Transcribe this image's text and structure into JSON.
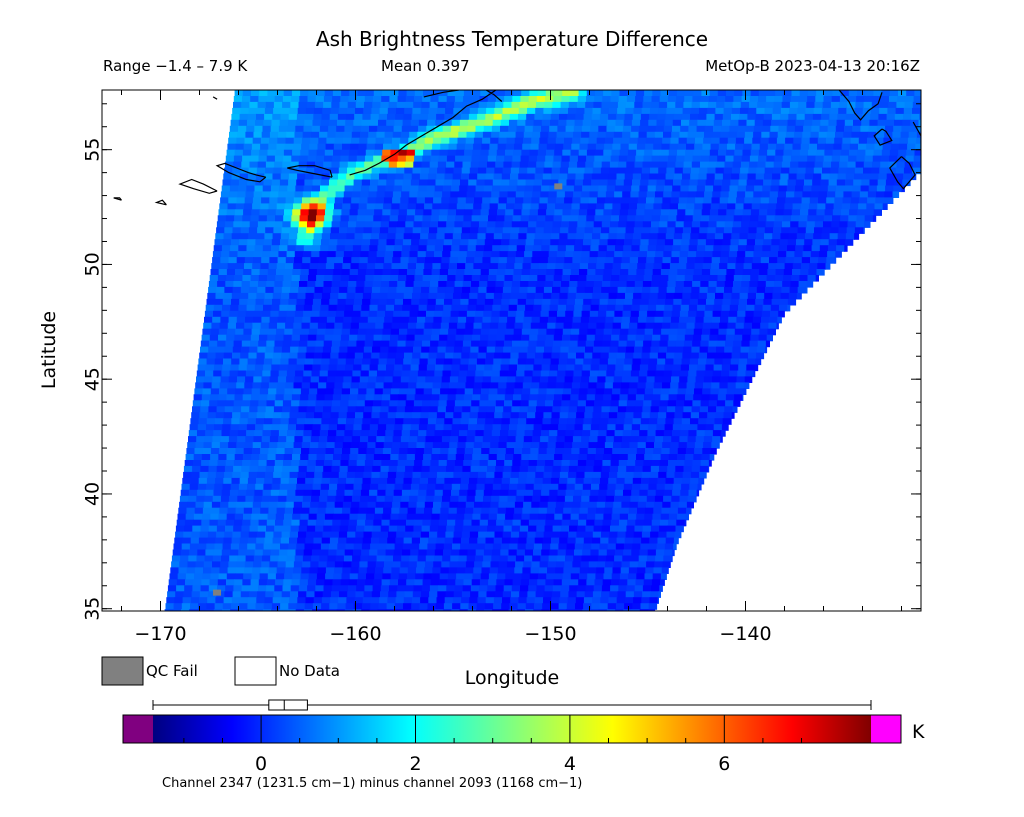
{
  "chart_data": {
    "type": "heatmap",
    "title": "Ash Brightness Temperature Difference",
    "info": {
      "range": "Range −1.4 – 7.9 K",
      "mean": "Mean 0.397",
      "satellite_time": "MetOp-B 2023-04-13 20:16Z"
    },
    "xlabel": "Longitude",
    "ylabel": "Latitude",
    "xlim": [
      -173,
      -131
    ],
    "ylim": [
      34.9,
      57.6
    ],
    "x_ticks": [
      {
        "value": -170,
        "label": "−170"
      },
      {
        "value": -160,
        "label": "−160"
      },
      {
        "value": -150,
        "label": "−150"
      },
      {
        "value": -140,
        "label": "−140"
      }
    ],
    "y_ticks": [
      {
        "value": 35,
        "label": "35"
      },
      {
        "value": 40,
        "label": "40"
      },
      {
        "value": 45,
        "label": "45"
      },
      {
        "value": 50,
        "label": "50"
      },
      {
        "value": 55,
        "label": "55"
      }
    ],
    "legend": {
      "qc_fail_label": "QC Fail",
      "no_data_label": "No Data",
      "qc_fail_color": "#808080",
      "no_data_color": "#ffffff"
    },
    "colorbar": {
      "unit": "K",
      "min": -1.4,
      "max": 7.9,
      "ticks": [
        {
          "value": 0,
          "label": "0"
        },
        {
          "value": 2,
          "label": "2"
        },
        {
          "value": 4,
          "label": "4"
        },
        {
          "value": 6,
          "label": "6"
        }
      ],
      "underflow_color": "#800080",
      "overflow_color": "#ff00ff",
      "box_stats": {
        "min": -1.4,
        "q1": 0.1,
        "median": 0.3,
        "q3": 0.6,
        "max": 7.9
      },
      "caption": "Channel 2347 (1231.5 cm−1) minus channel 2093 (1168 cm−1)"
    },
    "swath": {
      "left_edge": [
        [
          -166.2,
          57.6
        ],
        [
          -169.8,
          34.9
        ]
      ],
      "right_edge": [
        [
          -131,
          54.2
        ],
        [
          -138,
          48
        ],
        [
          -141.5,
          42
        ],
        [
          -143.5,
          38
        ],
        [
          -144.7,
          34.9
        ]
      ]
    },
    "ash_plume": {
      "peak_location": [
        -162.3,
        52.3
      ],
      "peak_value": 7.9,
      "arc_points": [
        [
          -162.5,
          51.2
        ],
        [
          -162,
          52.8
        ],
        [
          -160,
          54.2
        ],
        [
          -158,
          54.8
        ],
        [
          -156,
          55.6
        ],
        [
          -153,
          56.5
        ],
        [
          -151,
          57.2
        ],
        [
          -149,
          57.6
        ]
      ]
    },
    "qc_fail_pixels": [
      [
        -149.6,
        53.4
      ],
      [
        -167.1,
        35.7
      ]
    ]
  }
}
